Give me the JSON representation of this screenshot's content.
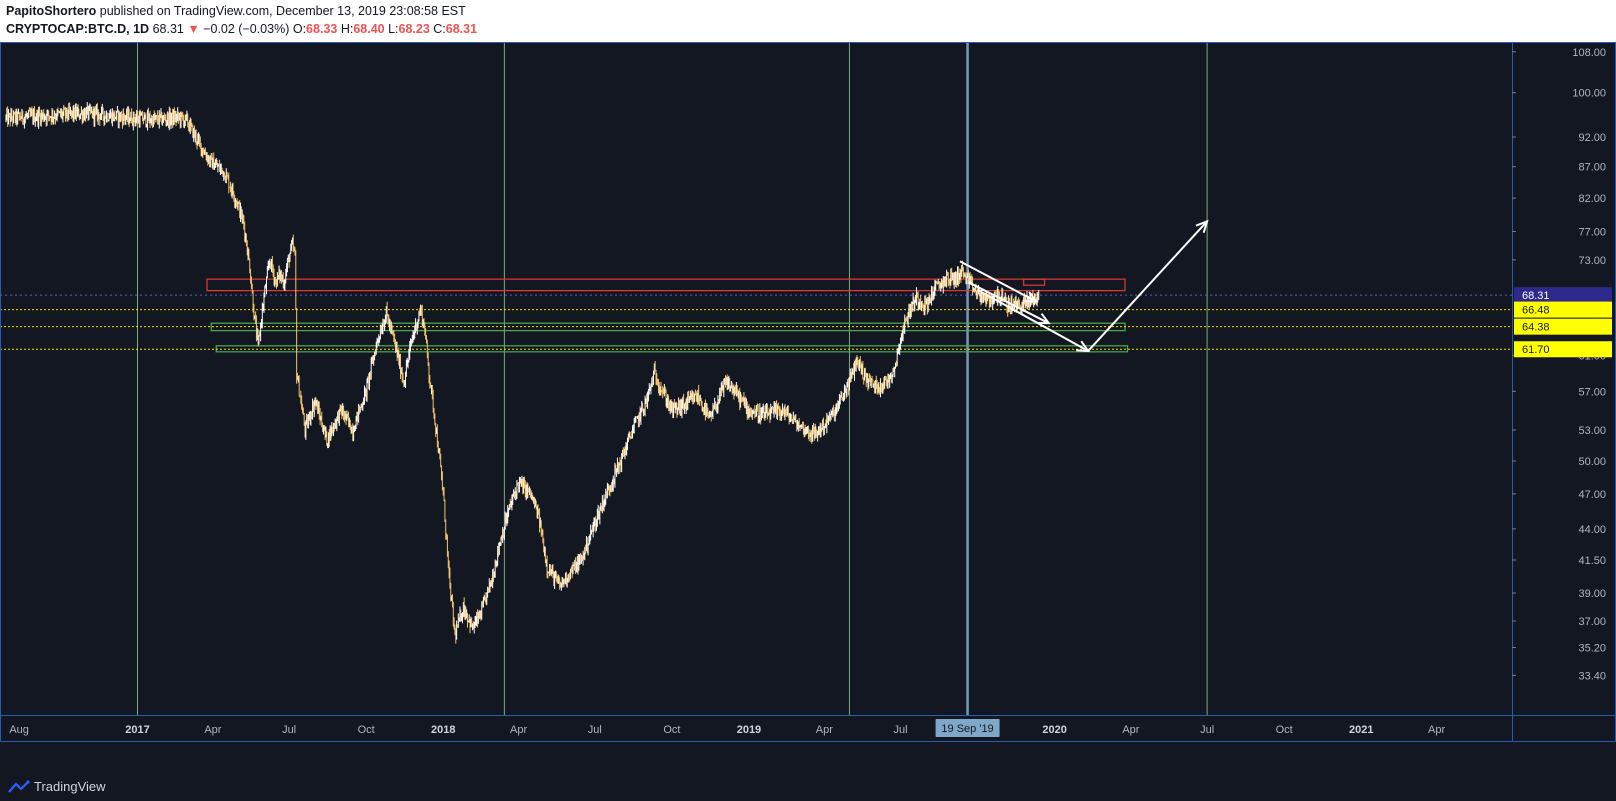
{
  "header": {
    "author": "PapitoShortero",
    "published": "published on TradingView.com, December 13, 2019 23:08:58 EST",
    "symbol": "CRYPTOCAP:BTC.D, 1D",
    "last": "68.31",
    "change_arrow": "▼",
    "change": "−0.02 (−0.03%)",
    "o_label": "O:",
    "o_value": "68.33",
    "h_label": "H:",
    "h_value": "68.40",
    "l_label": "L:",
    "l_value": "68.23",
    "c_label": "C:",
    "c_value": "68.31"
  },
  "footer": {
    "brand": "TradingView",
    "logo_icon": "tradingview-logo-icon"
  },
  "colors": {
    "background": "#131722",
    "candle_up": "#ffffff",
    "candle_down": "#f5c56b",
    "resistance": "#e53935",
    "support": "#4caf50",
    "vertical_lines": "#a5d6a7",
    "level_lines": "#ffe000",
    "price_label_bg": "#ffff00",
    "last_price_bg": "#2e2a8c",
    "crosshair_time_bg": "#7fa8c8"
  },
  "chart_data": {
    "type": "candlestick",
    "symbol": "CRYPTOCAP:BTC.D",
    "interval": "1D",
    "y_scale": "log",
    "ylim": [
      31.0,
      110.0
    ],
    "xlim": [
      "2016-07-28",
      "2021-06-30"
    ],
    "y_ticks": [
      "108.00",
      "100.00",
      "92.00",
      "87.00",
      "82.00",
      "77.00",
      "73.00",
      "61.00",
      "57.00",
      "53.00",
      "50.00",
      "47.00",
      "44.00",
      "41.50",
      "39.00",
      "37.00",
      "35.20",
      "33.40"
    ],
    "x_ticks": [
      {
        "label": "Aug",
        "date": "2016-08-01",
        "bold": false
      },
      {
        "label": "2017",
        "date": "2017-01-01",
        "bold": true
      },
      {
        "label": "Apr",
        "date": "2017-04-01",
        "bold": false
      },
      {
        "label": "Jul",
        "date": "2017-07-01",
        "bold": false
      },
      {
        "label": "Oct",
        "date": "2017-10-01",
        "bold": false
      },
      {
        "label": "2018",
        "date": "2018-01-01",
        "bold": true
      },
      {
        "label": "Apr",
        "date": "2018-04-01",
        "bold": false
      },
      {
        "label": "Jul",
        "date": "2018-07-01",
        "bold": false
      },
      {
        "label": "Oct",
        "date": "2018-10-01",
        "bold": false
      },
      {
        "label": "2019",
        "date": "2019-01-01",
        "bold": true
      },
      {
        "label": "Apr",
        "date": "2019-04-01",
        "bold": false
      },
      {
        "label": "Jul",
        "date": "2019-07-01",
        "bold": false
      },
      {
        "label": "2020",
        "date": "2020-01-01",
        "bold": true
      },
      {
        "label": "Apr",
        "date": "2020-04-01",
        "bold": false
      },
      {
        "label": "Jul",
        "date": "2020-07-01",
        "bold": false
      },
      {
        "label": "Oct",
        "date": "2020-10-01",
        "bold": false
      },
      {
        "label": "2021",
        "date": "2021-01-01",
        "bold": true
      },
      {
        "label": "Apr",
        "date": "2021-04-01",
        "bold": false
      }
    ],
    "price_labels": [
      {
        "value": 68.31,
        "text": "68.31",
        "kind": "last"
      },
      {
        "value": 66.48,
        "text": "66.48",
        "kind": "level"
      },
      {
        "value": 64.38,
        "text": "64.38",
        "kind": "level"
      },
      {
        "value": 61.7,
        "text": "61.70",
        "kind": "level"
      }
    ],
    "crosshair_label": {
      "date": "2019-09-19",
      "text": "19 Sep '19"
    },
    "vertical_lines": [
      "2017-01-01",
      "2018-03-15",
      "2019-05-01",
      "2019-09-19",
      "2020-07-01"
    ],
    "zones": [
      {
        "kind": "resistance",
        "from": "2017-03-25",
        "to": "2020-03-25",
        "low": 68.9,
        "high": 70.4
      },
      {
        "kind": "resistance",
        "from": "2019-11-25",
        "to": "2019-12-20",
        "low": 69.6,
        "high": 70.4
      },
      {
        "kind": "support",
        "from": "2017-03-30",
        "to": "2020-03-25",
        "low": 63.9,
        "high": 64.8
      },
      {
        "kind": "support",
        "from": "2017-04-05",
        "to": "2020-03-28",
        "low": 61.4,
        "high": 62.1
      }
    ],
    "arrows": [
      {
        "from": [
          "2019-09-10",
          72.8
        ],
        "to": [
          "2019-12-10",
          67.5
        ]
      },
      {
        "from": [
          "2019-09-20",
          70.0
        ],
        "to": [
          "2019-12-25",
          64.8
        ]
      },
      {
        "from": [
          "2019-10-01",
          69.0
        ],
        "to": [
          "2020-02-10",
          61.5
        ]
      },
      {
        "from": [
          "2020-02-10",
          61.5
        ],
        "to": [
          "2020-07-01",
          78.5
        ]
      }
    ],
    "series_anchors": [
      [
        "2016-07-28",
        95.3
      ],
      [
        "2016-09-15",
        95.8
      ],
      [
        "2016-11-01",
        96.2
      ],
      [
        "2016-12-15",
        95.5
      ],
      [
        "2017-01-20",
        95.0
      ],
      [
        "2017-02-20",
        95.4
      ],
      [
        "2017-03-01",
        94.8
      ],
      [
        "2017-03-15",
        91.0
      ],
      [
        "2017-03-28",
        88.0
      ],
      [
        "2017-04-15",
        86.0
      ],
      [
        "2017-05-01",
        81.0
      ],
      [
        "2017-05-08",
        78.0
      ],
      [
        "2017-05-15",
        72.0
      ],
      [
        "2017-05-20",
        66.0
      ],
      [
        "2017-05-25",
        62.0
      ],
      [
        "2017-06-01",
        68.0
      ],
      [
        "2017-06-08",
        73.0
      ],
      [
        "2017-06-15",
        70.0
      ],
      [
        "2017-06-20",
        71.0
      ],
      [
        "2017-06-25",
        70.0
      ],
      [
        "2017-06-30",
        73.0
      ],
      [
        "2017-07-05",
        75.0
      ],
      [
        "2017-07-08",
        73.5
      ],
      [
        "2017-07-10",
        59.0
      ],
      [
        "2017-07-20",
        53.0
      ],
      [
        "2017-08-01",
        56.0
      ],
      [
        "2017-08-15",
        52.0
      ],
      [
        "2017-09-01",
        55.0
      ],
      [
        "2017-09-15",
        53.0
      ],
      [
        "2017-10-01",
        57.0
      ],
      [
        "2017-10-15",
        63.0
      ],
      [
        "2017-10-25",
        66.0
      ],
      [
        "2017-11-05",
        62.0
      ],
      [
        "2017-11-15",
        58.0
      ],
      [
        "2017-11-25",
        63.0
      ],
      [
        "2017-12-05",
        66.5
      ],
      [
        "2017-12-10",
        64.0
      ],
      [
        "2017-12-15",
        59.0
      ],
      [
        "2017-12-25",
        52.0
      ],
      [
        "2018-01-01",
        47.0
      ],
      [
        "2018-01-08",
        40.0
      ],
      [
        "2018-01-15",
        36.0
      ],
      [
        "2018-01-25",
        38.0
      ],
      [
        "2018-02-05",
        36.5
      ],
      [
        "2018-02-15",
        37.5
      ],
      [
        "2018-02-28",
        40.0
      ],
      [
        "2018-03-10",
        43.0
      ],
      [
        "2018-03-20",
        45.5
      ],
      [
        "2018-04-01",
        48.0
      ],
      [
        "2018-04-15",
        47.0
      ],
      [
        "2018-04-25",
        45.0
      ],
      [
        "2018-05-05",
        41.0
      ],
      [
        "2018-05-20",
        39.5
      ],
      [
        "2018-06-01",
        40.5
      ],
      [
        "2018-06-15",
        41.5
      ],
      [
        "2018-07-01",
        44.5
      ],
      [
        "2018-07-15",
        47.0
      ],
      [
        "2018-08-01",
        50.0
      ],
      [
        "2018-08-15",
        53.0
      ],
      [
        "2018-09-01",
        56.0
      ],
      [
        "2018-09-10",
        59.0
      ],
      [
        "2018-09-20",
        57.0
      ],
      [
        "2018-10-01",
        55.0
      ],
      [
        "2018-10-15",
        55.5
      ],
      [
        "2018-11-01",
        56.5
      ],
      [
        "2018-11-15",
        54.0
      ],
      [
        "2018-11-25",
        56.0
      ],
      [
        "2018-12-05",
        58.0
      ],
      [
        "2018-12-15",
        57.0
      ],
      [
        "2019-01-01",
        55.0
      ],
      [
        "2019-01-20",
        54.5
      ],
      [
        "2019-02-10",
        55.0
      ],
      [
        "2019-03-01",
        53.5
      ],
      [
        "2019-03-20",
        52.5
      ],
      [
        "2019-04-01",
        53.5
      ],
      [
        "2019-04-15",
        55.0
      ],
      [
        "2019-05-01",
        58.0
      ],
      [
        "2019-05-10",
        60.5
      ],
      [
        "2019-05-20",
        58.5
      ],
      [
        "2019-06-01",
        57.5
      ],
      [
        "2019-06-15",
        58.0
      ],
      [
        "2019-06-25",
        60.0
      ],
      [
        "2019-07-01",
        63.0
      ],
      [
        "2019-07-10",
        66.0
      ],
      [
        "2019-07-20",
        68.0
      ],
      [
        "2019-08-01",
        67.0
      ],
      [
        "2019-08-10",
        69.0
      ],
      [
        "2019-08-25",
        70.5
      ],
      [
        "2019-09-05",
        70.5
      ],
      [
        "2019-09-12",
        71.5
      ],
      [
        "2019-09-20",
        70.0
      ],
      [
        "2019-10-01",
        68.5
      ],
      [
        "2019-10-15",
        67.5
      ],
      [
        "2019-10-25",
        68.5
      ],
      [
        "2019-11-05",
        67.0
      ],
      [
        "2019-11-20",
        67.0
      ],
      [
        "2019-12-01",
        67.5
      ],
      [
        "2019-12-13",
        68.3
      ]
    ]
  }
}
